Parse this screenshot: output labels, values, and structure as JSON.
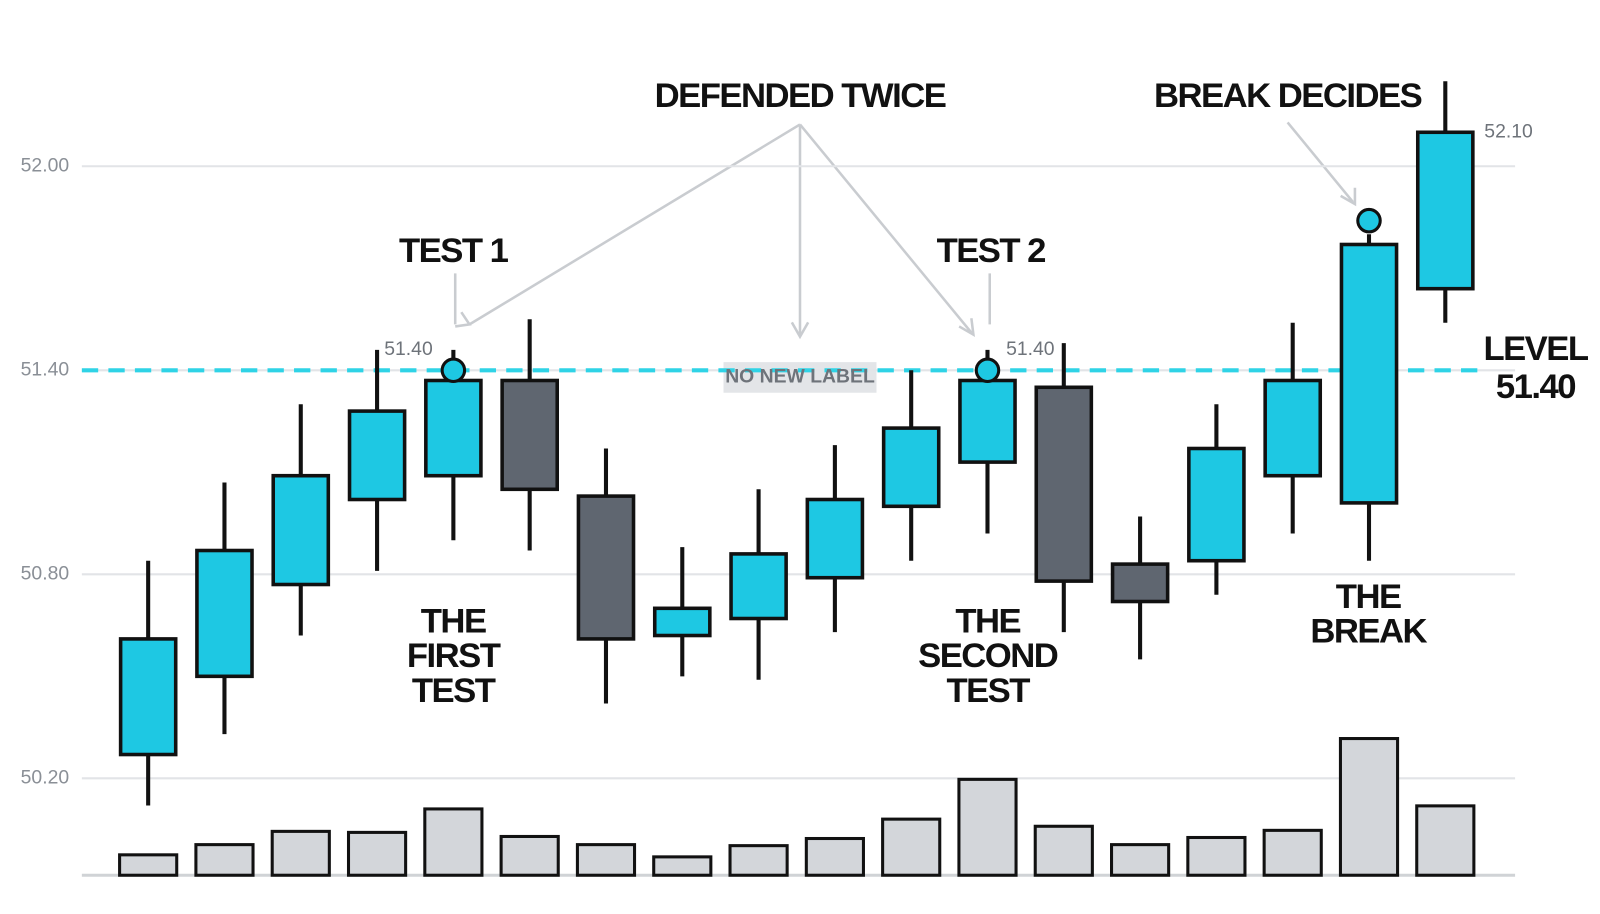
{
  "chart_data": {
    "type": "candlestick",
    "ylim": [
      50.2,
      52.3
    ],
    "yticks": [
      {
        "value": 52.0,
        "label": "52.00"
      },
      {
        "value": 51.4,
        "label": "51.40"
      },
      {
        "value": 50.8,
        "label": "50.80"
      },
      {
        "value": 50.2,
        "label": "50.20"
      }
    ],
    "grid": true,
    "up_color": "#1ec8e3",
    "down_color": "#5f6670",
    "volume_color": "#d3d6da",
    "level_color": "#2fd3e6",
    "open": [
      50.27,
      50.5,
      50.77,
      51.02,
      51.09,
      51.37,
      51.03,
      50.62,
      50.67,
      50.79,
      51.0,
      51.13,
      51.35,
      50.83,
      50.84,
      51.09,
      51.01,
      51.64
    ],
    "high": [
      50.84,
      51.07,
      51.3,
      51.46,
      51.46,
      51.55,
      51.17,
      50.88,
      51.05,
      51.18,
      51.4,
      51.46,
      51.48,
      50.97,
      51.3,
      51.54,
      51.8,
      52.25
    ],
    "low": [
      50.12,
      50.33,
      50.62,
      50.81,
      50.9,
      50.87,
      50.42,
      50.5,
      50.49,
      50.63,
      50.84,
      50.92,
      50.63,
      50.55,
      50.74,
      50.92,
      50.84,
      51.54
    ],
    "close": [
      50.61,
      50.87,
      51.09,
      51.28,
      51.37,
      51.05,
      50.61,
      50.7,
      50.86,
      51.02,
      51.23,
      51.37,
      50.78,
      50.72,
      51.17,
      51.37,
      51.77,
      52.1
    ],
    "volume": [
      20,
      30,
      43,
      42,
      65,
      38,
      30,
      18,
      29,
      36,
      55,
      94,
      48,
      30,
      37,
      44,
      134,
      68
    ],
    "level": {
      "value": 51.4,
      "label": [
        "LEVEL",
        "51.40"
      ]
    },
    "touch_markers": [
      {
        "index": 4,
        "value": 51.4
      },
      {
        "index": 11,
        "value": 51.4
      },
      {
        "index": 16,
        "value": 51.84
      }
    ],
    "price_labels": [
      {
        "index": 4,
        "value": 51.4,
        "label": "51.40"
      },
      {
        "index": 11,
        "value": 51.4,
        "label": "51.40"
      },
      {
        "index": 17,
        "value": 52.1,
        "label": "52.10"
      }
    ],
    "annotations": {
      "defended_twice": "DEFENDED TWICE",
      "break_decides": "BREAK DECIDES",
      "test_1": "TEST 1",
      "test_2": "TEST 2",
      "first_test": [
        "THE",
        "FIRST",
        "TEST"
      ],
      "second_test": [
        "THE",
        "SECOND",
        "TEST"
      ],
      "the_break": [
        "THE",
        "BREAK"
      ],
      "no_new_label": "NO NEW LABEL"
    }
  }
}
